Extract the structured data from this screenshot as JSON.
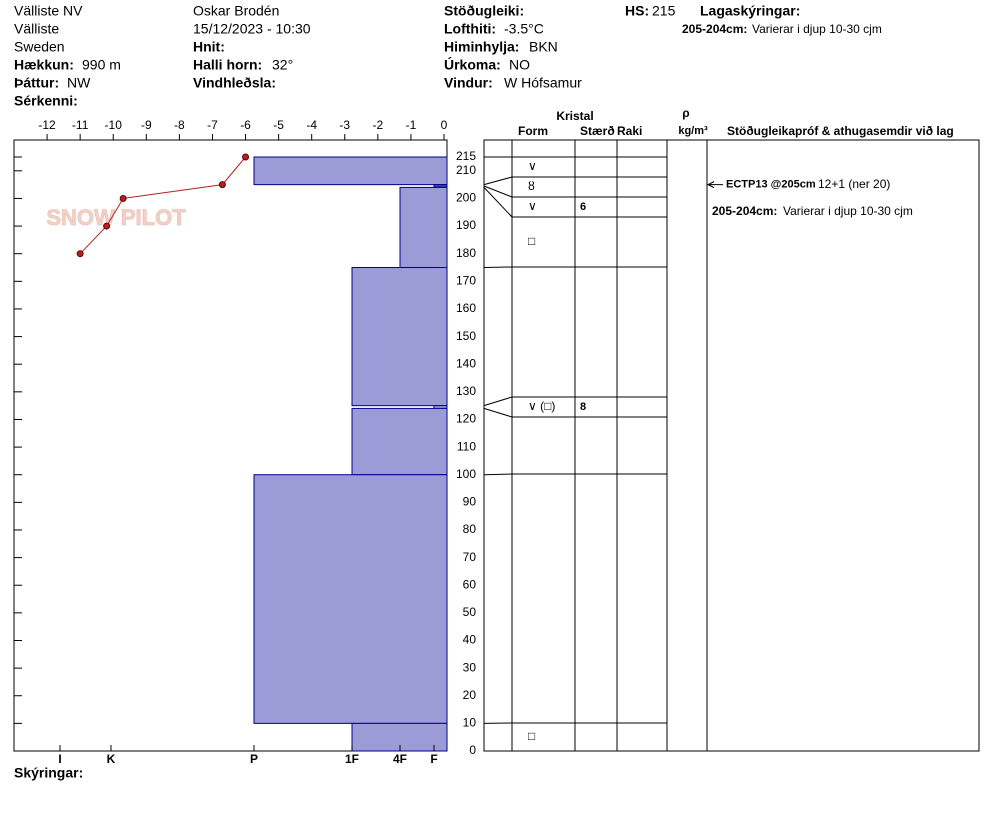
{
  "header": {
    "site": "Välliste NV",
    "location": "Välliste",
    "country": "Sweden",
    "elevation_label": "Hækkun:",
    "elevation": "990 m",
    "aspect_label": "Þáttur:",
    "aspect": "NW",
    "features_label": "Sérkenni:",
    "observer": "Oskar Brodén",
    "datetime": "15/12/2023 - 10:30",
    "coords_label": "Hnit:",
    "slope_label": "Halli horn:",
    "slope": "32°",
    "wind_loading_label": "Vindhleðsla:",
    "stability_label": "Stöðugleiki:",
    "air_temp_label": "Lofthiti:",
    "air_temp": "-3.5°C",
    "sky_label": "Himinhylja:",
    "sky": "BKN",
    "precip_label": "Úrkoma:",
    "precip": "NO",
    "wind_label": "Vindur:",
    "wind": "W Hófsamur",
    "hs_label": "HS:",
    "hs": 215,
    "layer_notes_label": "Lagaskýringar:",
    "layer_note_range": "205-204cm:",
    "layer_note": "Varierar i djup 10-30 cjm"
  },
  "chart_data": {
    "type": "snow-profile",
    "logo": "SNOW PILOT",
    "xlim": [
      -13,
      0
    ],
    "xticks": [
      -12,
      -11,
      -10,
      -9,
      -8,
      -7,
      -6,
      -5,
      -4,
      -3,
      -2,
      -1,
      0
    ],
    "ylim": [
      0,
      215
    ],
    "yticks": [
      0,
      10,
      20,
      30,
      40,
      50,
      60,
      70,
      80,
      90,
      100,
      110,
      120,
      130,
      140,
      150,
      160,
      170,
      180,
      190,
      200,
      210,
      215
    ],
    "hardness_scale": [
      "I",
      "K",
      "P",
      "1F",
      "4F",
      "F"
    ],
    "layer_color": "#9b9bd8",
    "layers": [
      {
        "top": 215,
        "bottom": 205,
        "hardness": "P",
        "form": "∨"
      },
      {
        "top": 205,
        "bottom": 204.5,
        "hardness": "F",
        "form": "ȣ"
      },
      {
        "top": 204.5,
        "bottom": 204,
        "hardness": "F",
        "form": "∨",
        "size": 6
      },
      {
        "top": 204,
        "bottom": 175,
        "hardness": "4F",
        "form": "□"
      },
      {
        "top": 175,
        "bottom": 125,
        "hardness": "1F"
      },
      {
        "top": 125,
        "bottom": 124,
        "hardness": "F",
        "form": "∨ (□)",
        "size": 8
      },
      {
        "top": 124,
        "bottom": 100,
        "hardness": "1F"
      },
      {
        "top": 100,
        "bottom": 10,
        "hardness": "P"
      },
      {
        "top": 10,
        "bottom": 0,
        "hardness": "1F",
        "form": "□"
      }
    ],
    "temperature": {
      "color": "#b22222",
      "temps": [
        -11,
        -10.2,
        -9.7,
        -6.7,
        -6
      ],
      "heights": [
        180,
        190,
        200,
        205,
        215
      ]
    },
    "table_headers": {
      "crystal": "Kristal",
      "form": "Form",
      "size": "Stærð",
      "moisture": "Raki",
      "density": "ρ",
      "density_unit": "kg/m³",
      "tests": "Stöðugleikapróf & athugasemdir við lag"
    },
    "tests": [
      {
        "height": 205,
        "label": "ECTP13 @205cm",
        "result": "12+1 (ner 20)"
      }
    ],
    "comments": [
      {
        "range": "205-204cm:",
        "text": "Varierar i djup 10-30 cjm"
      }
    ],
    "footer_label": "Skýringar:"
  }
}
